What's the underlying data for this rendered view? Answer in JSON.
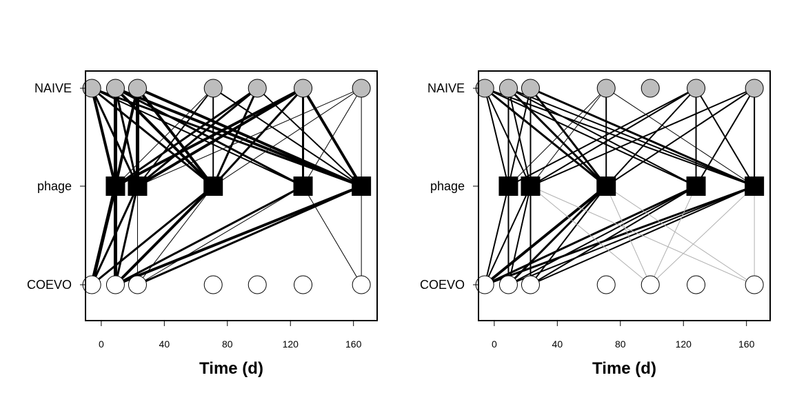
{
  "chart_data": [
    {
      "type": "network",
      "xlabel": "Time (d)",
      "xlim": [
        -10,
        175
      ],
      "xticks": [
        0,
        40,
        80,
        120,
        160
      ],
      "rows": [
        "NAIVE",
        "phage",
        "COEVO"
      ],
      "nodes": {
        "NAIVE": [
          -6,
          9,
          23,
          71,
          99,
          128,
          165
        ],
        "phage": [
          9,
          23,
          71,
          128,
          165
        ],
        "COEVO": [
          -6,
          9,
          23,
          71,
          99,
          128,
          165
        ]
      },
      "node_colors": {
        "NAIVE": "#bdbdbd",
        "phage": "#000000",
        "COEVO": "#ffffff"
      },
      "edges": [
        [
          "NAIVE",
          -6,
          "phage",
          9,
          4
        ],
        [
          "NAIVE",
          -6,
          "phage",
          23,
          3
        ],
        [
          "NAIVE",
          -6,
          "phage",
          71,
          3
        ],
        [
          "NAIVE",
          -6,
          "phage",
          128,
          2
        ],
        [
          "NAIVE",
          -6,
          "phage",
          165,
          3
        ],
        [
          "NAIVE",
          9,
          "phage",
          9,
          5
        ],
        [
          "NAIVE",
          9,
          "phage",
          23,
          3
        ],
        [
          "NAIVE",
          9,
          "phage",
          71,
          4
        ],
        [
          "NAIVE",
          9,
          "phage",
          128,
          3
        ],
        [
          "NAIVE",
          9,
          "phage",
          165,
          4
        ],
        [
          "NAIVE",
          23,
          "phage",
          9,
          4
        ],
        [
          "NAIVE",
          23,
          "phage",
          23,
          5
        ],
        [
          "NAIVE",
          23,
          "phage",
          71,
          4
        ],
        [
          "NAIVE",
          23,
          "phage",
          165,
          4
        ],
        [
          "NAIVE",
          71,
          "phage",
          9,
          1
        ],
        [
          "NAIVE",
          71,
          "phage",
          23,
          2
        ],
        [
          "NAIVE",
          71,
          "phage",
          71,
          2
        ],
        [
          "NAIVE",
          71,
          "phage",
          165,
          2
        ],
        [
          "NAIVE",
          99,
          "phage",
          9,
          3
        ],
        [
          "NAIVE",
          99,
          "phage",
          23,
          3
        ],
        [
          "NAIVE",
          99,
          "phage",
          71,
          3
        ],
        [
          "NAIVE",
          99,
          "phage",
          165,
          2
        ],
        [
          "NAIVE",
          128,
          "phage",
          9,
          4
        ],
        [
          "NAIVE",
          128,
          "phage",
          23,
          4
        ],
        [
          "NAIVE",
          128,
          "phage",
          71,
          3
        ],
        [
          "NAIVE",
          128,
          "phage",
          128,
          3
        ],
        [
          "NAIVE",
          128,
          "phage",
          165,
          4
        ],
        [
          "NAIVE",
          165,
          "phage",
          23,
          1
        ],
        [
          "NAIVE",
          165,
          "phage",
          71,
          1
        ],
        [
          "NAIVE",
          165,
          "phage",
          128,
          1
        ],
        [
          "NAIVE",
          165,
          "phage",
          165,
          1
        ],
        [
          "COEVO",
          -6,
          "phage",
          9,
          5
        ],
        [
          "COEVO",
          -6,
          "phage",
          23,
          3
        ],
        [
          "COEVO",
          -6,
          "phage",
          71,
          3
        ],
        [
          "COEVO",
          9,
          "phage",
          9,
          5
        ],
        [
          "COEVO",
          9,
          "phage",
          23,
          3
        ],
        [
          "COEVO",
          9,
          "phage",
          71,
          4
        ],
        [
          "COEVO",
          9,
          "phage",
          128,
          3
        ],
        [
          "COEVO",
          9,
          "phage",
          165,
          4
        ],
        [
          "COEVO",
          23,
          "phage",
          23,
          1
        ],
        [
          "COEVO",
          23,
          "phage",
          71,
          1
        ],
        [
          "COEVO",
          23,
          "phage",
          128,
          1
        ],
        [
          "COEVO",
          23,
          "phage",
          165,
          3
        ],
        [
          "COEVO",
          165,
          "phage",
          165,
          1
        ],
        [
          "COEVO",
          165,
          "phage",
          128,
          1
        ]
      ]
    },
    {
      "type": "network",
      "xlabel": "Time (d)",
      "xlim": [
        -10,
        175
      ],
      "xticks": [
        0,
        40,
        80,
        120,
        160
      ],
      "rows": [
        "NAIVE",
        "phage",
        "COEVO"
      ],
      "nodes": {
        "NAIVE": [
          -6,
          9,
          23,
          71,
          99,
          128,
          165
        ],
        "phage": [
          9,
          23,
          71,
          128,
          165
        ],
        "COEVO": [
          -6,
          9,
          23,
          71,
          99,
          128,
          165
        ]
      },
      "node_colors": {
        "NAIVE": "#bdbdbd",
        "phage": "#000000",
        "COEVO": "#ffffff"
      },
      "edges": [
        [
          "NAIVE",
          -6,
          "phage",
          9,
          2
        ],
        [
          "NAIVE",
          -6,
          "phage",
          23,
          2
        ],
        [
          "NAIVE",
          -6,
          "phage",
          71,
          3
        ],
        [
          "NAIVE",
          -6,
          "phage",
          128,
          2
        ],
        [
          "NAIVE",
          -6,
          "phage",
          165,
          2
        ],
        [
          "NAIVE",
          9,
          "phage",
          9,
          2
        ],
        [
          "NAIVE",
          9,
          "phage",
          23,
          2
        ],
        [
          "NAIVE",
          9,
          "phage",
          71,
          3
        ],
        [
          "NAIVE",
          9,
          "phage",
          128,
          2
        ],
        [
          "NAIVE",
          9,
          "phage",
          165,
          2
        ],
        [
          "NAIVE",
          23,
          "phage",
          9,
          2
        ],
        [
          "NAIVE",
          23,
          "phage",
          23,
          2
        ],
        [
          "NAIVE",
          23,
          "phage",
          71,
          3
        ],
        [
          "NAIVE",
          23,
          "phage",
          165,
          3
        ],
        [
          "NAIVE",
          71,
          "phage",
          9,
          1
        ],
        [
          "NAIVE",
          71,
          "phage",
          23,
          1
        ],
        [
          "NAIVE",
          71,
          "phage",
          71,
          2
        ],
        [
          "NAIVE",
          71,
          "phage",
          165,
          1
        ],
        [
          "NAIVE",
          128,
          "phage",
          9,
          2
        ],
        [
          "NAIVE",
          128,
          "phage",
          23,
          2
        ],
        [
          "NAIVE",
          128,
          "phage",
          71,
          2
        ],
        [
          "NAIVE",
          128,
          "phage",
          128,
          2
        ],
        [
          "NAIVE",
          128,
          "phage",
          165,
          2
        ],
        [
          "NAIVE",
          165,
          "phage",
          23,
          2
        ],
        [
          "NAIVE",
          165,
          "phage",
          71,
          2
        ],
        [
          "NAIVE",
          165,
          "phage",
          128,
          2
        ],
        [
          "NAIVE",
          165,
          "phage",
          165,
          2
        ],
        [
          "COEVO",
          -6,
          "phage",
          9,
          2
        ],
        [
          "COEVO",
          -6,
          "phage",
          23,
          2
        ],
        [
          "COEVO",
          -6,
          "phage",
          71,
          4
        ],
        [
          "COEVO",
          -6,
          "phage",
          128,
          3
        ],
        [
          "COEVO",
          -6,
          "phage",
          165,
          3
        ],
        [
          "COEVO",
          9,
          "phage",
          9,
          2
        ],
        [
          "COEVO",
          9,
          "phage",
          23,
          2
        ],
        [
          "COEVO",
          9,
          "phage",
          71,
          3
        ],
        [
          "COEVO",
          9,
          "phage",
          128,
          2
        ],
        [
          "COEVO",
          9,
          "phage",
          165,
          2
        ],
        [
          "COEVO",
          23,
          "phage",
          23,
          2
        ],
        [
          "COEVO",
          23,
          "phage",
          71,
          2
        ],
        [
          "COEVO",
          23,
          "phage",
          128,
          2
        ],
        [
          "COEVO",
          23,
          "phage",
          165,
          2
        ],
        [
          "COEVO",
          99,
          "phage",
          23,
          0.5
        ],
        [
          "COEVO",
          99,
          "phage",
          71,
          0.5
        ],
        [
          "COEVO",
          99,
          "phage",
          128,
          0.5
        ],
        [
          "COEVO",
          99,
          "phage",
          165,
          0.5
        ],
        [
          "COEVO",
          165,
          "phage",
          23,
          0.5
        ],
        [
          "COEVO",
          165,
          "phage",
          71,
          0.5
        ],
        [
          "COEVO",
          165,
          "phage",
          165,
          0.5
        ]
      ]
    }
  ]
}
